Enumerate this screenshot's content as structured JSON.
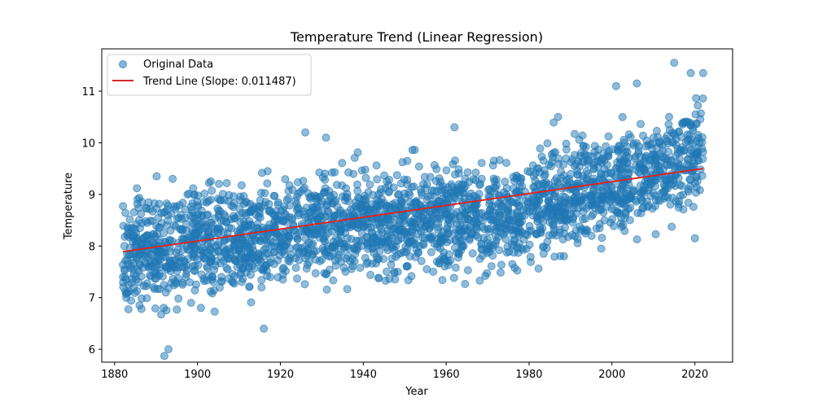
{
  "chart_data": {
    "type": "scatter",
    "title": "Temperature Trend (Linear Regression)",
    "xlabel": "Year",
    "ylabel": "Temperature",
    "xlim": [
      1876.9,
      2029.1
    ],
    "ylim": [
      5.75,
      11.82
    ],
    "xticks": [
      1880,
      1900,
      1920,
      1940,
      1960,
      1980,
      2000,
      2020
    ],
    "yticks": [
      6,
      7,
      8,
      9,
      10,
      11
    ],
    "grid": false,
    "legend_position": "top-left",
    "series": [
      {
        "name": "Original Data",
        "kind": "scatter",
        "color": "#1f77b4",
        "x_range": [
          1882,
          2022
        ],
        "band_center": [
          [
            1882,
            7.9
          ],
          [
            1892,
            7.9
          ],
          [
            1900,
            8.1
          ],
          [
            1910,
            8.1
          ],
          [
            1920,
            8.3
          ],
          [
            1930,
            8.4
          ],
          [
            1940,
            8.4
          ],
          [
            1950,
            8.5
          ],
          [
            1960,
            8.6
          ],
          [
            1970,
            8.5
          ],
          [
            1980,
            8.7
          ],
          [
            1990,
            9.0
          ],
          [
            2000,
            9.2
          ],
          [
            2010,
            9.4
          ],
          [
            2022,
            9.8
          ]
        ],
        "band_spread": 0.9,
        "extremes": [
          [
            1892,
            5.87
          ],
          [
            1893,
            6.0
          ],
          [
            1916,
            6.4
          ],
          [
            1926,
            10.2
          ],
          [
            1931,
            10.1
          ],
          [
            1962,
            10.3
          ],
          [
            1987,
            10.5
          ],
          [
            2001,
            11.1
          ],
          [
            2006,
            11.15
          ],
          [
            2015,
            11.55
          ],
          [
            2019,
            11.35
          ],
          [
            2022,
            11.35
          ],
          [
            2020,
            8.15
          ],
          [
            1894,
            9.3
          ]
        ]
      },
      {
        "name": "Trend Line (Slope: 0.011487)",
        "kind": "line",
        "color": "#d62728",
        "x": [
          1882,
          2022
        ],
        "y": [
          7.89,
          9.5
        ]
      }
    ]
  }
}
